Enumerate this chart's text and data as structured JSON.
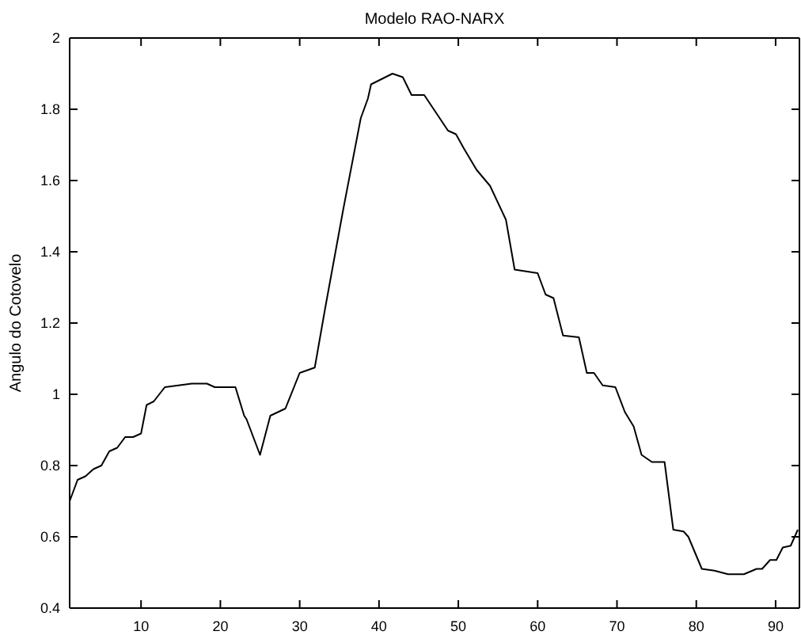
{
  "chart_data": {
    "type": "line",
    "title": "Modelo RAO-NARX",
    "ylabel": "Angulo do Cotovelo",
    "xlim": [
      1,
      93
    ],
    "xticks": [
      10,
      20,
      30,
      40,
      50,
      60,
      70,
      80,
      90
    ],
    "ylim": [
      0.4,
      2
    ],
    "yticks": [
      0.4,
      0.6,
      0.8,
      1,
      1.2,
      1.4,
      1.6,
      1.8,
      2
    ],
    "grid": false,
    "series": [
      {
        "color": "#000000",
        "x": [
          1,
          2,
          3,
          4,
          5,
          6,
          7,
          8,
          9,
          10,
          10.7,
          11.6,
          13,
          16.4,
          18.3,
          19.3,
          21.9,
          23,
          23.3,
          25,
          26.3,
          28.2,
          30,
          31.9,
          33.2,
          35.5,
          37.7,
          38.6,
          39,
          41.7,
          43,
          44.1,
          45.7,
          48.7,
          49.7,
          50.7,
          52.3,
          54,
          56,
          57.1,
          60,
          61,
          62,
          63.2,
          65.2,
          66.2,
          67.1,
          68.2,
          69.8,
          71,
          72.1,
          73.1,
          74.4,
          76,
          77.1,
          78.4,
          79,
          80.7,
          82.3,
          84,
          86,
          87.6,
          88.3,
          89.3,
          90.1,
          90.9,
          91.9,
          92.8
        ],
        "values": [
          0.7,
          0.76,
          0.77,
          0.79,
          0.8,
          0.84,
          0.85,
          0.88,
          0.88,
          0.89,
          0.97,
          0.98,
          1.02,
          1.03,
          1.03,
          1.02,
          1.02,
          0.94,
          0.93,
          0.83,
          0.94,
          0.96,
          1.06,
          1.075,
          1.24,
          1.52,
          1.775,
          1.83,
          1.87,
          1.9,
          1.89,
          1.84,
          1.84,
          1.74,
          1.73,
          1.69,
          1.63,
          1.585,
          1.49,
          1.35,
          1.34,
          1.28,
          1.27,
          1.165,
          1.16,
          1.06,
          1.06,
          1.025,
          1.02,
          0.95,
          0.91,
          0.83,
          0.81,
          0.81,
          0.62,
          0.615,
          0.6,
          0.51,
          0.505,
          0.495,
          0.495,
          0.51,
          0.51,
          0.535,
          0.535,
          0.57,
          0.575,
          0.62
        ]
      }
    ]
  }
}
